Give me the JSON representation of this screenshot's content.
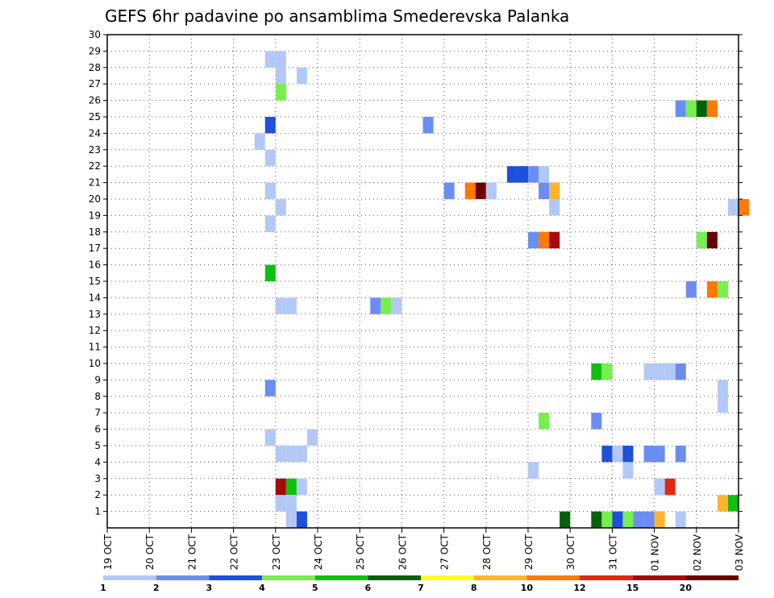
{
  "chart_data": {
    "type": "heatmap",
    "title": "GEFS 6hr padavine po ansamblima Smederevska Palanka",
    "xlabel": "",
    "ylabel": "",
    "x_tick_labels": [
      "19 OCT",
      "20 OCT",
      "21 OCT",
      "22 OCT",
      "23 OCT",
      "24 OCT",
      "25 OCT",
      "26 OCT",
      "27 OCT",
      "28 OCT",
      "29 OCT",
      "30 OCT",
      "31 OCT",
      "01 NOV",
      "02 NOV",
      "03 NOV"
    ],
    "x_range_days": [
      0,
      15
    ],
    "y_tick_labels": [
      "1",
      "2",
      "3",
      "4",
      "5",
      "6",
      "7",
      "8",
      "9",
      "10",
      "11",
      "12",
      "13",
      "14",
      "15",
      "16",
      "17",
      "18",
      "19",
      "20",
      "21",
      "22",
      "23",
      "24",
      "25",
      "26",
      "27",
      "28",
      "29",
      "30"
    ],
    "y_range": [
      0,
      30
    ],
    "grid": true,
    "colorbar": {
      "tick_labels": [
        "1",
        "2",
        "3",
        "4",
        "5",
        "6",
        "7",
        "8",
        "10",
        "12",
        "15",
        "20"
      ],
      "colors": [
        "#b4c8f8",
        "#6a8ef0",
        "#1e50dc",
        "#78ee50",
        "#10c010",
        "#086008",
        "#ffff20",
        "#ffb430",
        "#ff7a00",
        "#e02a10",
        "#a80808",
        "#6a0000"
      ]
    },
    "cells": [
      {
        "x": 3.75,
        "y": 29,
        "c": 0
      },
      {
        "x": 4.0,
        "y": 29,
        "c": 0
      },
      {
        "x": 4.0,
        "y": 28,
        "c": 0
      },
      {
        "x": 4.5,
        "y": 28,
        "c": 0
      },
      {
        "x": 4.0,
        "y": 27,
        "c": 3
      },
      {
        "x": 3.75,
        "y": 25,
        "c": 2
      },
      {
        "x": 7.5,
        "y": 25,
        "c": 1
      },
      {
        "x": 13.5,
        "y": 26,
        "c": 1
      },
      {
        "x": 13.75,
        "y": 26,
        "c": 3
      },
      {
        "x": 14.0,
        "y": 26,
        "c": 5
      },
      {
        "x": 14.25,
        "y": 26,
        "c": 8
      },
      {
        "x": 3.5,
        "y": 24,
        "c": 0
      },
      {
        "x": 3.75,
        "y": 23,
        "c": 0
      },
      {
        "x": 9.5,
        "y": 22,
        "c": 2
      },
      {
        "x": 9.75,
        "y": 22,
        "c": 2
      },
      {
        "x": 10.0,
        "y": 22,
        "c": 1
      },
      {
        "x": 10.25,
        "y": 22,
        "c": 0
      },
      {
        "x": 3.75,
        "y": 21,
        "c": 0
      },
      {
        "x": 8.0,
        "y": 21,
        "c": 1
      },
      {
        "x": 8.5,
        "y": 21,
        "c": 8
      },
      {
        "x": 8.75,
        "y": 21,
        "c": 11
      },
      {
        "x": 9.0,
        "y": 21,
        "c": 0
      },
      {
        "x": 10.25,
        "y": 21,
        "c": 1
      },
      {
        "x": 10.5,
        "y": 21,
        "c": 7
      },
      {
        "x": 4.0,
        "y": 20,
        "c": 0
      },
      {
        "x": 10.5,
        "y": 20,
        "c": 0
      },
      {
        "x": 14.75,
        "y": 20,
        "c": 0
      },
      {
        "x": 15.0,
        "y": 20,
        "c": 8
      },
      {
        "x": 3.75,
        "y": 19,
        "c": 0
      },
      {
        "x": 10.0,
        "y": 18,
        "c": 1
      },
      {
        "x": 10.25,
        "y": 18,
        "c": 8
      },
      {
        "x": 10.5,
        "y": 18,
        "c": 10
      },
      {
        "x": 14.0,
        "y": 18,
        "c": 3
      },
      {
        "x": 14.25,
        "y": 18,
        "c": 11
      },
      {
        "x": 3.75,
        "y": 16,
        "c": 4
      },
      {
        "x": 13.75,
        "y": 15,
        "c": 1
      },
      {
        "x": 14.25,
        "y": 15,
        "c": 8
      },
      {
        "x": 14.5,
        "y": 15,
        "c": 3
      },
      {
        "x": 4.0,
        "y": 14,
        "c": 0
      },
      {
        "x": 4.25,
        "y": 14,
        "c": 0
      },
      {
        "x": 6.25,
        "y": 14,
        "c": 1
      },
      {
        "x": 6.5,
        "y": 14,
        "c": 3
      },
      {
        "x": 6.75,
        "y": 14,
        "c": 0
      },
      {
        "x": 11.5,
        "y": 10,
        "c": 4
      },
      {
        "x": 11.75,
        "y": 10,
        "c": 3
      },
      {
        "x": 12.75,
        "y": 10,
        "c": 0
      },
      {
        "x": 13.0,
        "y": 10,
        "c": 0
      },
      {
        "x": 13.25,
        "y": 10,
        "c": 0
      },
      {
        "x": 13.5,
        "y": 10,
        "c": 1
      },
      {
        "x": 3.75,
        "y": 9,
        "c": 1
      },
      {
        "x": 14.5,
        "y": 9,
        "c": 0
      },
      {
        "x": 14.5,
        "y": 8,
        "c": 0
      },
      {
        "x": 10.25,
        "y": 7,
        "c": 3
      },
      {
        "x": 11.5,
        "y": 7,
        "c": 1
      },
      {
        "x": 3.75,
        "y": 6,
        "c": 0
      },
      {
        "x": 4.75,
        "y": 6,
        "c": 0
      },
      {
        "x": 4.0,
        "y": 5,
        "c": 0
      },
      {
        "x": 4.25,
        "y": 5,
        "c": 0
      },
      {
        "x": 4.5,
        "y": 5,
        "c": 0
      },
      {
        "x": 11.75,
        "y": 5,
        "c": 2
      },
      {
        "x": 12.0,
        "y": 5,
        "c": 0
      },
      {
        "x": 12.25,
        "y": 5,
        "c": 2
      },
      {
        "x": 12.75,
        "y": 5,
        "c": 1
      },
      {
        "x": 13.0,
        "y": 5,
        "c": 1
      },
      {
        "x": 13.5,
        "y": 5,
        "c": 1
      },
      {
        "x": 10.0,
        "y": 4,
        "c": 0
      },
      {
        "x": 12.25,
        "y": 4,
        "c": 0
      },
      {
        "x": 4.0,
        "y": 3,
        "c": 10
      },
      {
        "x": 4.25,
        "y": 3,
        "c": 4
      },
      {
        "x": 4.5,
        "y": 3,
        "c": 0
      },
      {
        "x": 13.0,
        "y": 3,
        "c": 0
      },
      {
        "x": 13.25,
        "y": 3,
        "c": 9
      },
      {
        "x": 4.0,
        "y": 2,
        "c": 0
      },
      {
        "x": 4.25,
        "y": 2,
        "c": 0
      },
      {
        "x": 14.5,
        "y": 2,
        "c": 7
      },
      {
        "x": 14.75,
        "y": 2,
        "c": 4
      },
      {
        "x": 4.25,
        "y": 1,
        "c": 0
      },
      {
        "x": 4.5,
        "y": 1,
        "c": 2
      },
      {
        "x": 10.75,
        "y": 1,
        "c": 5
      },
      {
        "x": 11.5,
        "y": 1,
        "c": 5
      },
      {
        "x": 11.75,
        "y": 1,
        "c": 3
      },
      {
        "x": 12.0,
        "y": 1,
        "c": 2
      },
      {
        "x": 12.25,
        "y": 1,
        "c": 3
      },
      {
        "x": 12.5,
        "y": 1,
        "c": 1
      },
      {
        "x": 12.75,
        "y": 1,
        "c": 1
      },
      {
        "x": 13.0,
        "y": 1,
        "c": 7
      },
      {
        "x": 13.5,
        "y": 1,
        "c": 0
      }
    ]
  }
}
